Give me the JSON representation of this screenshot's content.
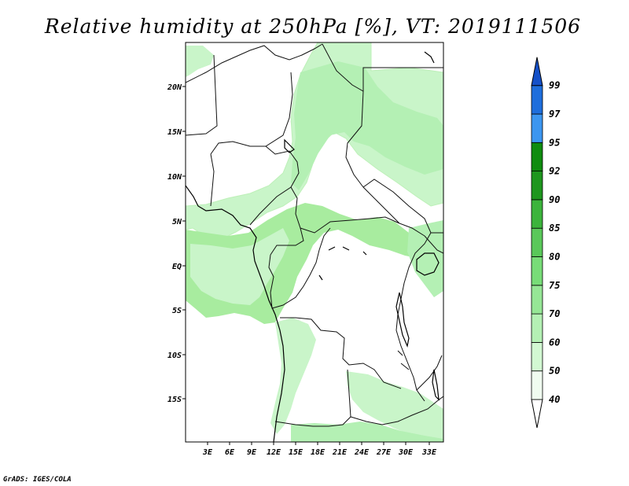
{
  "title": "Relative humidity at 250hPa [%], VT: 2019111506",
  "credit": "GrADS: IGES/COLA",
  "map": {
    "lon_labels": [
      "3E",
      "6E",
      "9E",
      "12E",
      "15E",
      "18E",
      "21E",
      "24E",
      "27E",
      "30E",
      "33E"
    ],
    "lat_labels": [
      "20N",
      "15N",
      "10N",
      "5N",
      "EQ",
      "5S",
      "10S",
      "15S"
    ]
  },
  "colorbar": {
    "levels": [
      "40",
      "50",
      "60",
      "70",
      "75",
      "80",
      "85",
      "90",
      "92",
      "95",
      "97",
      "99"
    ],
    "colors": [
      "#f0fcf0",
      "#d2f8d2",
      "#b4f0b4",
      "#96e696",
      "#78dc78",
      "#5ac85a",
      "#3cb43c",
      "#1e961e",
      "#0f8c0f",
      "#3c96f0",
      "#1e6edc",
      "#1450c8"
    ],
    "bottom_arrow_color": "#ffffff",
    "top_arrow_color": "#1450c8"
  },
  "colors": {
    "humid_light": "#c9f5c9",
    "humid_mid": "#a8ec9f",
    "border": "#111111"
  }
}
